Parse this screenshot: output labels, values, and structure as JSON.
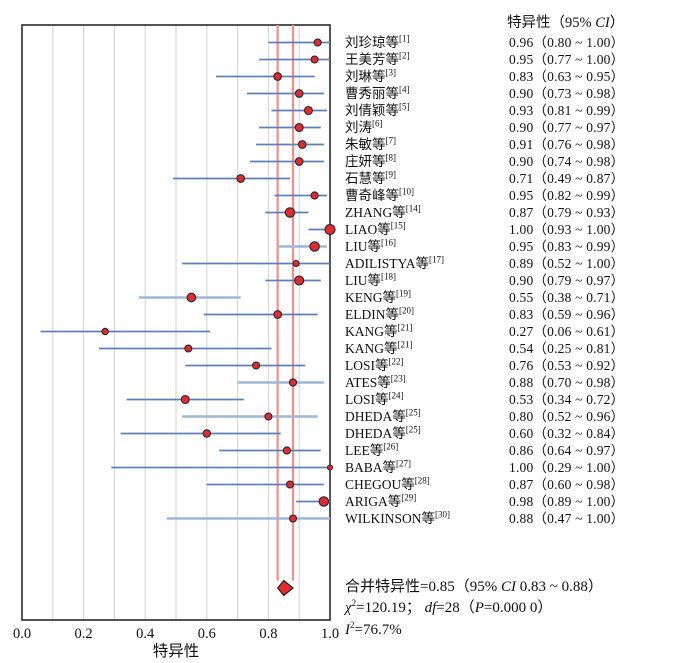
{
  "header": {
    "prefix": "特异性（95% ",
    "ci": "CI",
    "suffix": "）"
  },
  "chart_data": {
    "type": "forest",
    "title": "",
    "xlabel": "特异性",
    "xlim": [
      0,
      1
    ],
    "xticks": [
      "0.0",
      "0.2",
      "0.4",
      "0.6",
      "0.8",
      "1.0"
    ],
    "grid_step": 0.1,
    "grid_on": true,
    "pooled": {
      "est": 0.85,
      "lo": 0.83,
      "hi": 0.88
    },
    "studies": [
      {
        "label": "刘珍琼等",
        "ref": "[1]",
        "est": 0.96,
        "lo": 0.8,
        "hi": 1.0,
        "r": 3.5
      },
      {
        "label": "王美芳等",
        "ref": "[2]",
        "est": 0.95,
        "lo": 0.77,
        "hi": 1.0,
        "r": 3.5
      },
      {
        "label": "刘琳等",
        "ref": "[3]",
        "est": 0.83,
        "lo": 0.63,
        "hi": 0.95,
        "r": 3.8
      },
      {
        "label": "曹秀丽等",
        "ref": "[4]",
        "est": 0.9,
        "lo": 0.73,
        "hi": 0.98,
        "r": 3.8
      },
      {
        "label": "刘倩颖等",
        "ref": "[5]",
        "est": 0.93,
        "lo": 0.81,
        "hi": 0.99,
        "r": 4.0
      },
      {
        "label": "刘涛",
        "ref": "[6]",
        "est": 0.9,
        "lo": 0.77,
        "hi": 0.97,
        "r": 4.0
      },
      {
        "label": "朱敏等",
        "ref": "[7]",
        "est": 0.91,
        "lo": 0.76,
        "hi": 0.98,
        "r": 3.8
      },
      {
        "label": "庄妍等",
        "ref": "[8]",
        "est": 0.9,
        "lo": 0.74,
        "hi": 0.98,
        "r": 3.8
      },
      {
        "label": "石慧等",
        "ref": "[9]",
        "est": 0.71,
        "lo": 0.49,
        "hi": 0.87,
        "r": 3.8
      },
      {
        "label": "曹奇峰等",
        "ref": "[10]",
        "est": 0.95,
        "lo": 0.82,
        "hi": 0.99,
        "r": 3.6
      },
      {
        "label": "ZHANG等",
        "ref": "[14]",
        "est": 0.87,
        "lo": 0.79,
        "hi": 0.93,
        "r": 4.7
      },
      {
        "label": "LIAO等",
        "ref": "[15]",
        "est": 1.0,
        "lo": 0.93,
        "hi": 1.0,
        "r": 5.0
      },
      {
        "label": "LIU等",
        "ref": "[16]",
        "est": 0.95,
        "lo": 0.83,
        "hi": 0.99,
        "r": 4.7,
        "shade": "light"
      },
      {
        "label": "ADILISTYA等",
        "ref": "[17]",
        "est": 0.89,
        "lo": 0.52,
        "hi": 1.0,
        "r": 3.0
      },
      {
        "label": "LIU等",
        "ref": "[18]",
        "est": 0.9,
        "lo": 0.79,
        "hi": 0.97,
        "r": 4.5
      },
      {
        "label": "KENG等",
        "ref": "[19]",
        "est": 0.55,
        "lo": 0.38,
        "hi": 0.71,
        "r": 4.3,
        "shade": "light"
      },
      {
        "label": "ELDIN等",
        "ref": "[20]",
        "est": 0.83,
        "lo": 0.59,
        "hi": 0.96,
        "r": 3.8
      },
      {
        "label": "KANG等",
        "ref": "[21]",
        "est": 0.27,
        "lo": 0.06,
        "hi": 0.61,
        "r": 3.2
      },
      {
        "label": "KANG等",
        "ref": "[21]",
        "est": 0.54,
        "lo": 0.25,
        "hi": 0.81,
        "r": 3.5
      },
      {
        "label": "LOSI等",
        "ref": "[22]",
        "est": 0.76,
        "lo": 0.53,
        "hi": 0.92,
        "r": 3.5
      },
      {
        "label": "ATES等",
        "ref": "[23]",
        "est": 0.88,
        "lo": 0.7,
        "hi": 0.98,
        "r": 3.6,
        "shade": "light"
      },
      {
        "label": "LOSI等",
        "ref": "[24]",
        "est": 0.53,
        "lo": 0.34,
        "hi": 0.72,
        "r": 4.0
      },
      {
        "label": "DHEDA等",
        "ref": "[25]",
        "est": 0.8,
        "lo": 0.52,
        "hi": 0.96,
        "r": 3.5,
        "shade": "light"
      },
      {
        "label": "DHEDA等",
        "ref": "[25]",
        "est": 0.6,
        "lo": 0.32,
        "hi": 0.84,
        "r": 3.7
      },
      {
        "label": "LEE等",
        "ref": "[26]",
        "est": 0.86,
        "lo": 0.64,
        "hi": 0.97,
        "r": 3.6
      },
      {
        "label": "BABA等",
        "ref": "[27]",
        "est": 1.0,
        "lo": 0.29,
        "hi": 1.0,
        "r": 2.5
      },
      {
        "label": "CHEGOU等",
        "ref": "[28]",
        "est": 0.87,
        "lo": 0.6,
        "hi": 0.98,
        "r": 3.5
      },
      {
        "label": "ARIGA等",
        "ref": "[29]",
        "est": 0.98,
        "lo": 0.89,
        "hi": 1.0,
        "r": 4.7
      },
      {
        "label": "WILKINSON等",
        "ref": "[30]",
        "est": 0.88,
        "lo": 0.47,
        "hi": 1.0,
        "r": 3.5,
        "shade": "light"
      }
    ]
  },
  "summary": {
    "line1": {
      "p1": "合并特异性=0.85（95% ",
      "ci": "CI",
      "p2": " 0.83 ~ 0.88）"
    },
    "line2": {
      "chi": "χ",
      "sup": "2",
      "p1": "=120.19； ",
      "df": "df",
      "p2": "=28（",
      "pvar": "P",
      "p3": "=0.000 0）"
    },
    "line3": {
      "ivar": "I",
      "sup": "2",
      "p1": "=76.7%"
    }
  },
  "colors": {
    "point": "#e32b2f",
    "point_border": "#26262d",
    "ci_line": "#5e80ba",
    "ci_line_light": "#9fb6da",
    "ref_line": "#f08e8e",
    "grid": "#d9d9d9",
    "frame": "#2a2a2a",
    "diamond": "#e32b2f",
    "text": "#111111"
  }
}
